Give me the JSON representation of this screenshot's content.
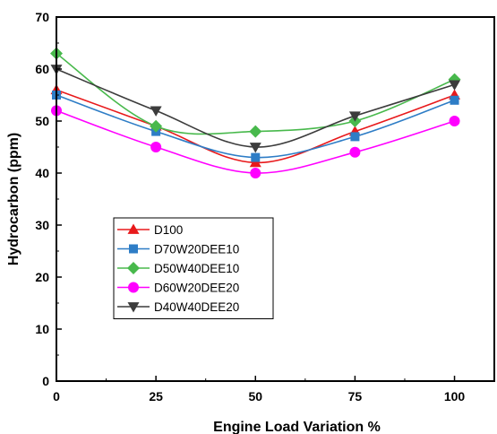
{
  "chart_data": {
    "type": "line",
    "title": "",
    "xlabel": "Engine Load Variation %",
    "ylabel": "Hydrocarbon (ppm)",
    "x": [
      0,
      25,
      50,
      75,
      100
    ],
    "xticks": [
      "0",
      "25",
      "50",
      "75",
      "100"
    ],
    "yticks": [
      "0",
      "10",
      "20",
      "30",
      "40",
      "50",
      "60",
      "70"
    ],
    "xlim": [
      0,
      110
    ],
    "ylim": [
      0,
      70
    ],
    "grid": false,
    "legend_position": "lower-left",
    "smooth": true,
    "series": [
      {
        "name": "D100",
        "values": [
          56,
          49,
          42,
          48,
          55
        ],
        "color": "#e8191b",
        "marker": "triangle-up"
      },
      {
        "name": "D70W20DEE10",
        "values": [
          55,
          48,
          43,
          47,
          54
        ],
        "color": "#2e7dc6",
        "marker": "square"
      },
      {
        "name": "D50W40DEE10",
        "values": [
          63,
          49,
          48,
          50,
          58
        ],
        "color": "#48b94c",
        "marker": "diamond"
      },
      {
        "name": "D60W20DEE20",
        "values": [
          52,
          45,
          40,
          44,
          50
        ],
        "color": "#ff00ff",
        "marker": "circle"
      },
      {
        "name": "D40W40DEE20",
        "values": [
          60,
          52,
          45,
          51,
          57
        ],
        "color": "#3c3c3c",
        "marker": "triangle-down"
      }
    ]
  }
}
